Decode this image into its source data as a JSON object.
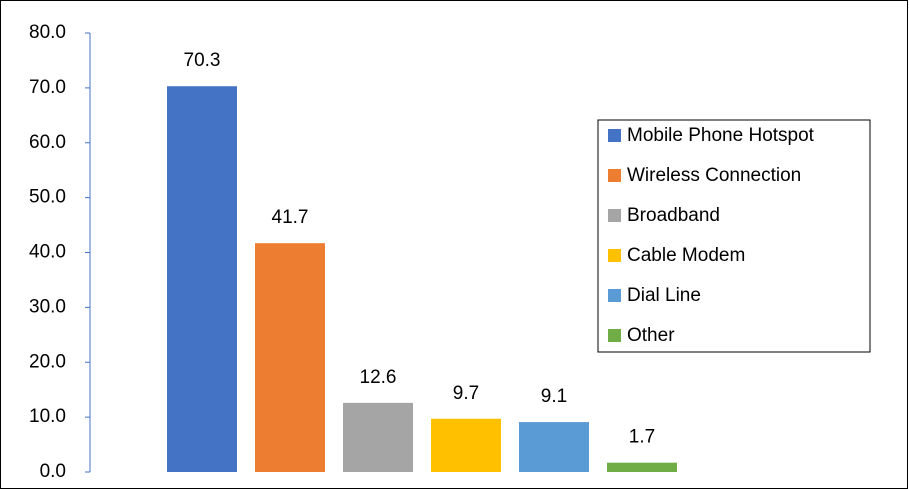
{
  "chart_data": {
    "type": "bar",
    "series": [
      {
        "name": "Mobile Phone Hotspot",
        "color": "#4472c4",
        "values": [
          70.3
        ]
      },
      {
        "name": "Wireless Connection",
        "color": "#ed7d31",
        "values": [
          41.7
        ]
      },
      {
        "name": "Broadband",
        "color": "#a5a5a5",
        "values": [
          12.6
        ]
      },
      {
        "name": "Cable Modem",
        "color": "#ffc000",
        "values": [
          9.7
        ]
      },
      {
        "name": "Dial Line",
        "color": "#5b9bd5",
        "values": [
          9.1
        ]
      },
      {
        "name": "Other",
        "color": "#70ad47",
        "values": [
          1.7
        ]
      }
    ],
    "ylim": [
      0,
      80
    ],
    "yticks": [
      {
        "value": 0,
        "label": "0.0"
      },
      {
        "value": 10,
        "label": "10.0"
      },
      {
        "value": 20,
        "label": "20.0"
      },
      {
        "value": 30,
        "label": "30.0"
      },
      {
        "value": 40,
        "label": "40.0"
      },
      {
        "value": 50,
        "label": "50.0"
      },
      {
        "value": 60,
        "label": "60.0"
      },
      {
        "value": 70,
        "label": "70.0"
      },
      {
        "value": 80,
        "label": "80.0"
      }
    ],
    "legend": "right"
  }
}
